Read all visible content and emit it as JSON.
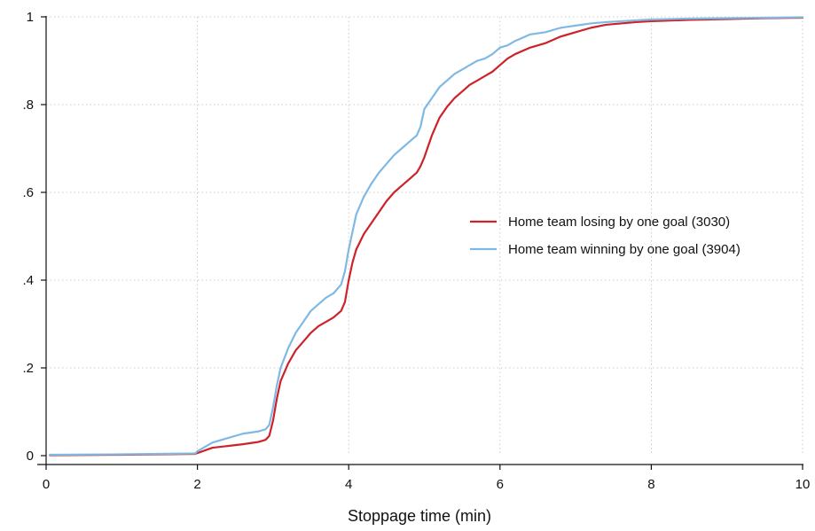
{
  "chart_data": {
    "type": "line",
    "title": "",
    "xlabel": "Stoppage time (min)",
    "ylabel": "",
    "xlim": [
      0,
      10
    ],
    "ylim": [
      0,
      1
    ],
    "x_ticks": [
      0,
      2,
      4,
      6,
      8,
      10
    ],
    "x_tick_labels": [
      "0",
      "2",
      "4",
      "6",
      "8",
      "10"
    ],
    "y_ticks": [
      0,
      0.2,
      0.4,
      0.6,
      0.8,
      1
    ],
    "y_tick_labels": [
      "0",
      ".2",
      ".4",
      ".6",
      ".8",
      "1"
    ],
    "grid": true,
    "legend_position": "right-center",
    "series": [
      {
        "name": "Home team losing by one goal (3030)",
        "color": "#cc2229",
        "x": [
          0.05,
          1.0,
          1.97,
          2.0,
          2.1,
          2.2,
          2.4,
          2.6,
          2.8,
          2.9,
          2.95,
          3.0,
          3.05,
          3.1,
          3.2,
          3.3,
          3.4,
          3.5,
          3.6,
          3.7,
          3.8,
          3.9,
          3.95,
          4.0,
          4.05,
          4.1,
          4.2,
          4.3,
          4.4,
          4.5,
          4.6,
          4.7,
          4.8,
          4.9,
          4.95,
          5.0,
          5.1,
          5.2,
          5.3,
          5.4,
          5.5,
          5.6,
          5.7,
          5.8,
          5.9,
          6.0,
          6.1,
          6.2,
          6.4,
          6.6,
          6.8,
          7.0,
          7.2,
          7.4,
          7.6,
          7.8,
          8.0,
          8.5,
          9.0,
          9.5,
          10.0
        ],
        "values": [
          0.001,
          0.002,
          0.004,
          0.006,
          0.012,
          0.018,
          0.022,
          0.026,
          0.031,
          0.036,
          0.045,
          0.08,
          0.13,
          0.17,
          0.21,
          0.24,
          0.26,
          0.28,
          0.295,
          0.305,
          0.315,
          0.33,
          0.35,
          0.4,
          0.44,
          0.47,
          0.505,
          0.53,
          0.555,
          0.58,
          0.6,
          0.615,
          0.63,
          0.645,
          0.66,
          0.68,
          0.73,
          0.77,
          0.795,
          0.815,
          0.83,
          0.845,
          0.855,
          0.865,
          0.875,
          0.89,
          0.905,
          0.915,
          0.93,
          0.94,
          0.955,
          0.965,
          0.975,
          0.982,
          0.985,
          0.988,
          0.99,
          0.993,
          0.995,
          0.997,
          0.998
        ]
      },
      {
        "name": "Home team winning by one goal (3904)",
        "color": "#7fb9e3",
        "x": [
          0.05,
          1.0,
          1.97,
          2.0,
          2.1,
          2.2,
          2.4,
          2.6,
          2.8,
          2.9,
          2.95,
          3.0,
          3.05,
          3.1,
          3.2,
          3.3,
          3.4,
          3.5,
          3.6,
          3.7,
          3.8,
          3.9,
          3.95,
          4.0,
          4.05,
          4.1,
          4.2,
          4.3,
          4.4,
          4.5,
          4.6,
          4.7,
          4.8,
          4.9,
          4.95,
          5.0,
          5.1,
          5.2,
          5.3,
          5.4,
          5.5,
          5.6,
          5.7,
          5.8,
          5.9,
          6.0,
          6.1,
          6.2,
          6.4,
          6.6,
          6.8,
          7.0,
          7.2,
          7.4,
          7.6,
          7.8,
          8.0,
          8.5,
          9.0,
          9.5,
          10.0
        ],
        "values": [
          0.002,
          0.003,
          0.005,
          0.01,
          0.02,
          0.03,
          0.04,
          0.05,
          0.055,
          0.06,
          0.07,
          0.11,
          0.16,
          0.2,
          0.245,
          0.28,
          0.305,
          0.33,
          0.345,
          0.36,
          0.37,
          0.39,
          0.42,
          0.47,
          0.51,
          0.55,
          0.59,
          0.62,
          0.645,
          0.665,
          0.685,
          0.7,
          0.715,
          0.73,
          0.75,
          0.79,
          0.815,
          0.84,
          0.855,
          0.87,
          0.88,
          0.89,
          0.9,
          0.905,
          0.915,
          0.93,
          0.935,
          0.945,
          0.96,
          0.965,
          0.975,
          0.98,
          0.985,
          0.988,
          0.99,
          0.992,
          0.994,
          0.996,
          0.997,
          0.998,
          0.999
        ]
      }
    ]
  }
}
